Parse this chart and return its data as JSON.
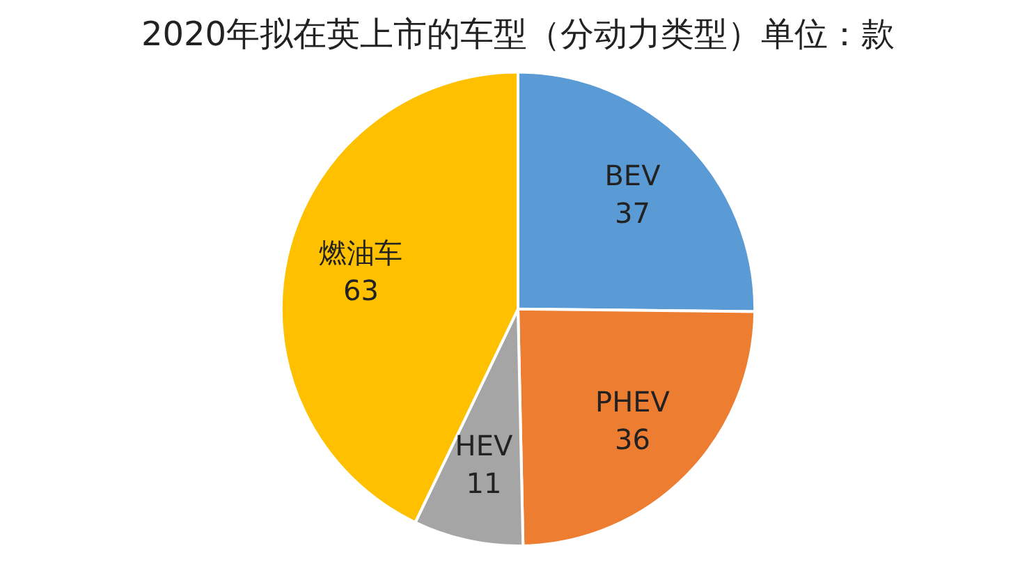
{
  "chart_data": {
    "type": "pie",
    "title": "2020年拟在英上市的车型（分动力类型）单位：款",
    "categories": [
      "BEV",
      "PHEV",
      "HEV",
      "燃油车"
    ],
    "values": [
      37,
      36,
      11,
      63
    ],
    "colors": [
      "#5b9bd5",
      "#ed7d31",
      "#a5a5a5",
      "#ffc000"
    ],
    "data_labels": true,
    "legend": false
  }
}
